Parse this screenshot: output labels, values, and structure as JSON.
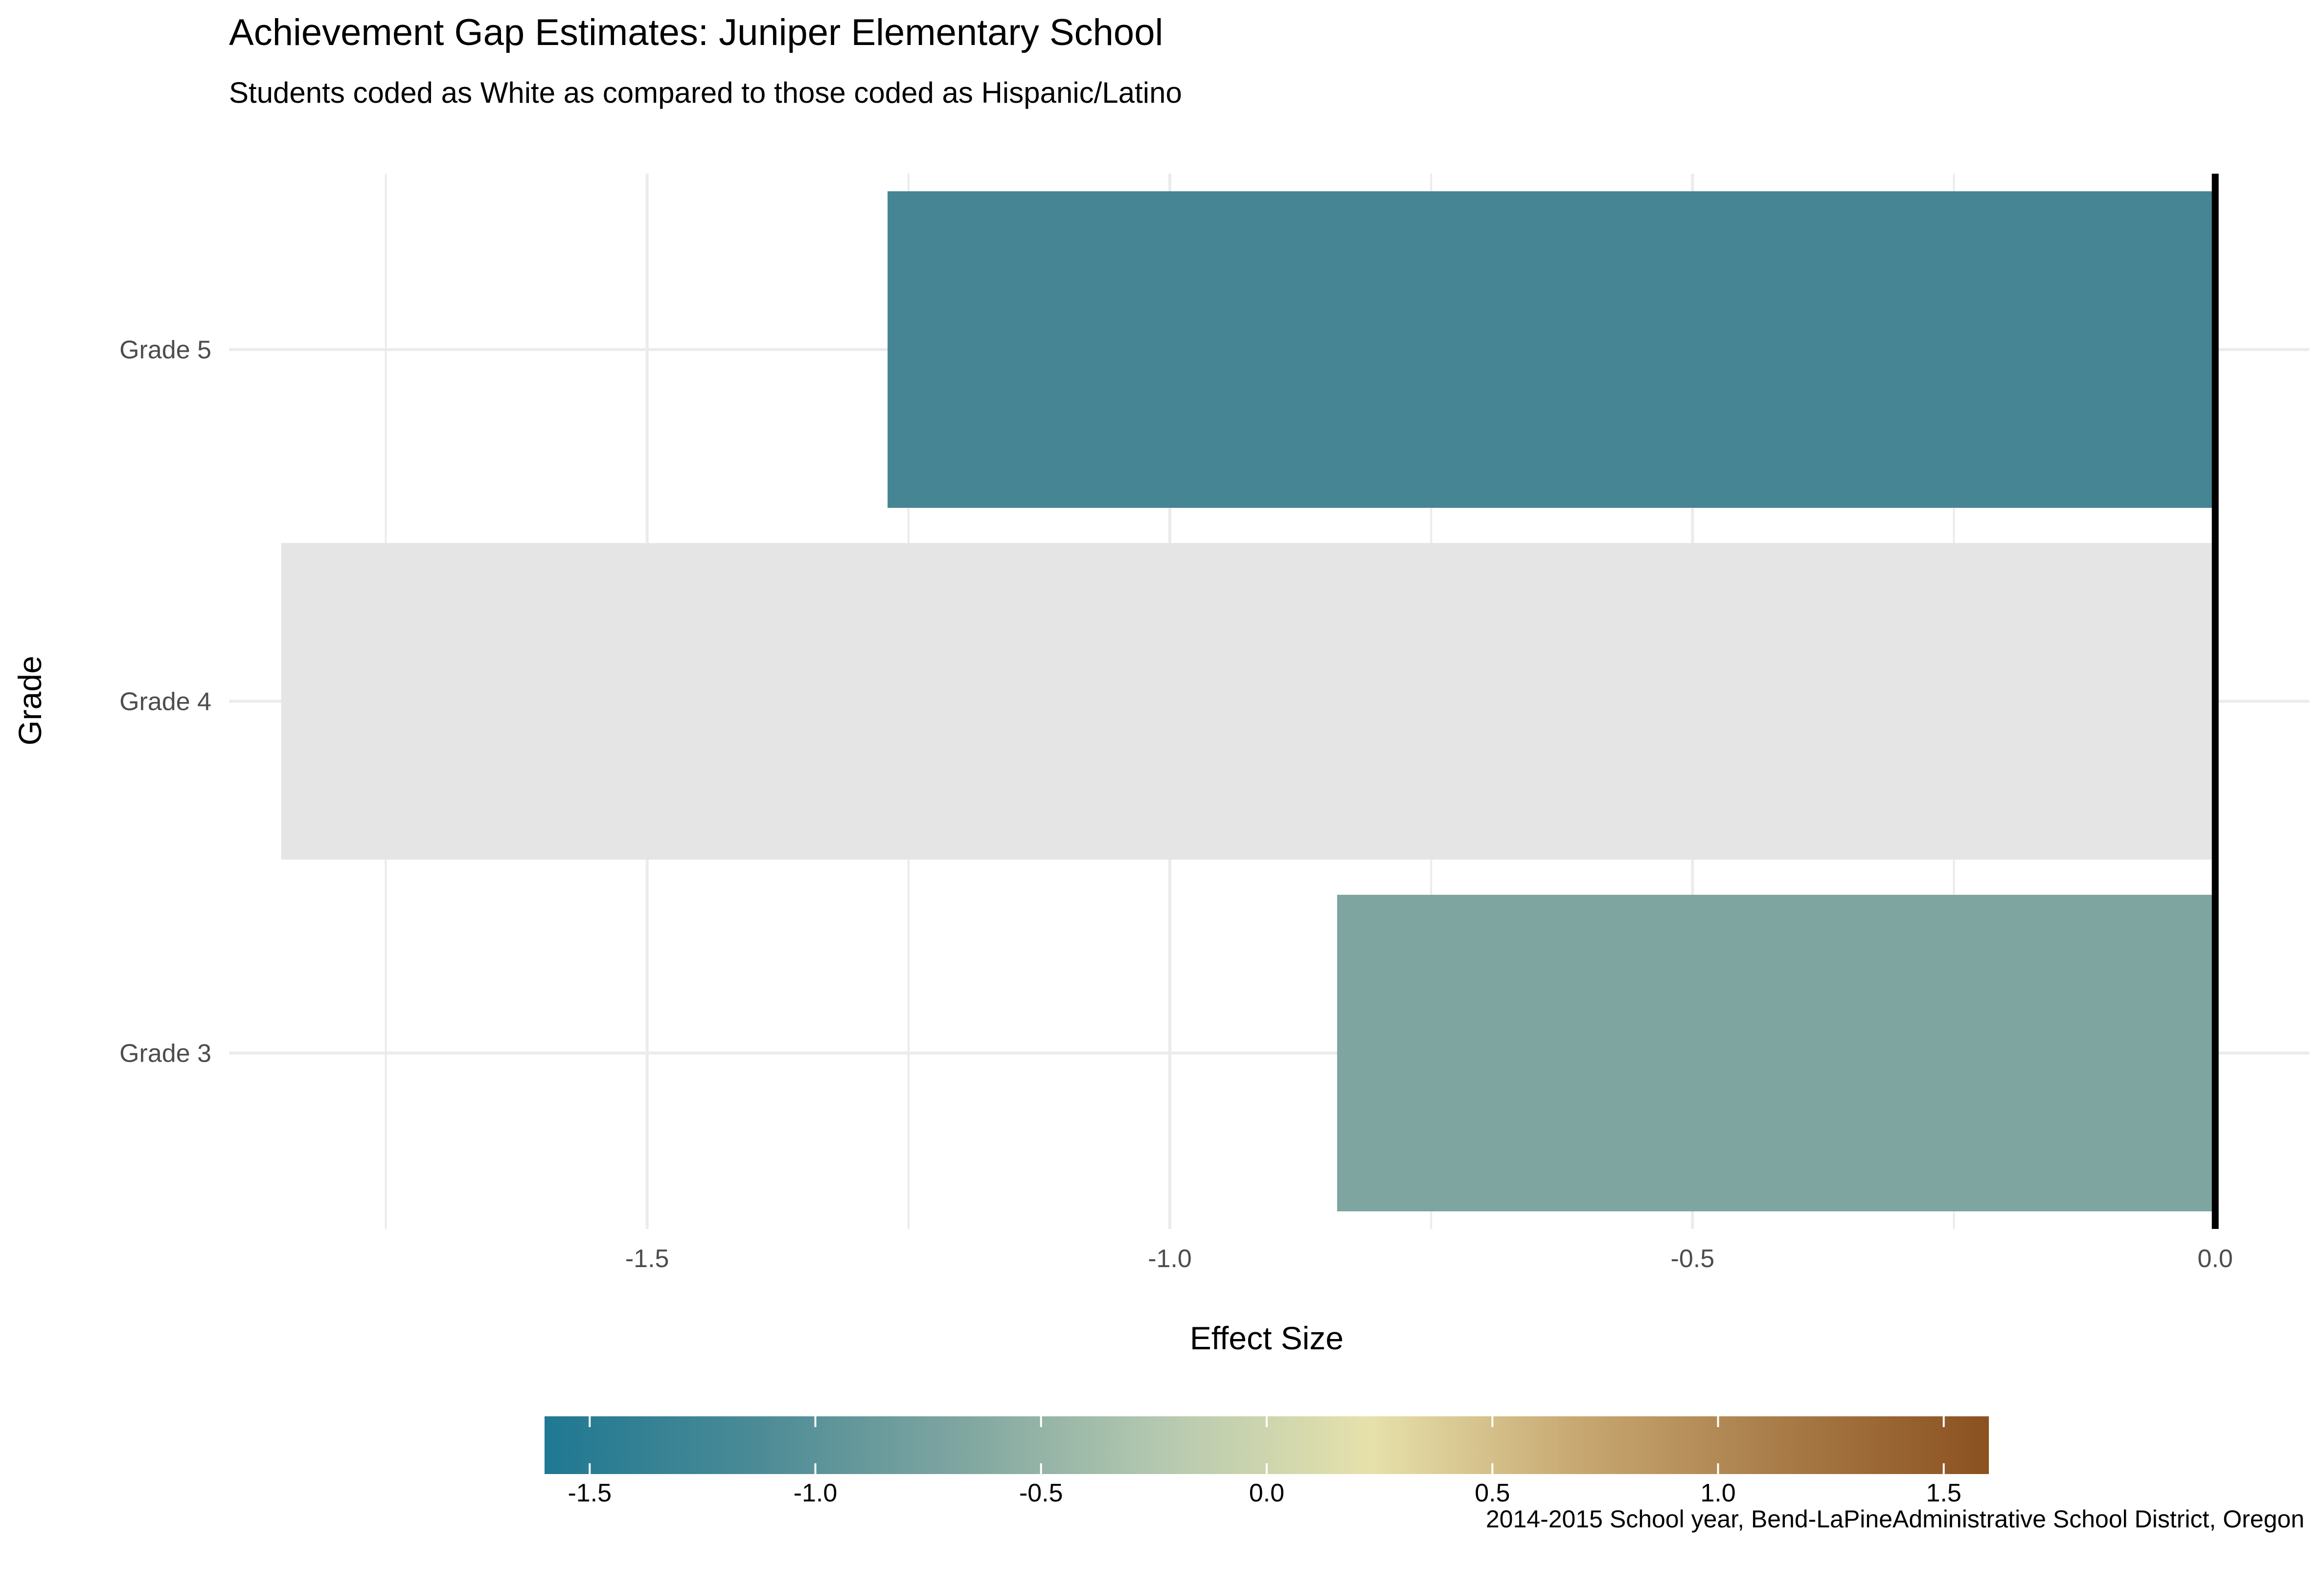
{
  "chart_data": {
    "type": "bar",
    "orientation": "horizontal",
    "title": "Achievement Gap Estimates: Juniper Elementary School",
    "subtitle": "Students coded as White as compared to those coded as Hispanic/Latino",
    "xlabel": "Effect Size",
    "ylabel": "Grade",
    "caption": "2014-2015 School year, Bend-LaPineAdministrative School District, Oregon",
    "categories": [
      "Grade 3",
      "Grade 4",
      "Grade 5"
    ],
    "values": [
      -0.84,
      -1.85,
      -1.27
    ],
    "bar_colors": [
      "#7ea5a0",
      "#e5e5e5",
      "#468594"
    ],
    "xlim": [
      -1.9,
      0.09
    ],
    "x_ticks": [
      -1.5,
      -1.0,
      -0.5,
      0.0
    ],
    "x_tick_labels": [
      "-1.5",
      "-1.0",
      "-0.5",
      "0.0"
    ],
    "reference_line": 0,
    "grid": true,
    "legend": {
      "type": "colorbar",
      "placement": "bottom",
      "range": [
        -1.6,
        1.6
      ],
      "ticks": [
        -1.5,
        -1.0,
        -0.5,
        0.0,
        0.5,
        1.0,
        1.5
      ],
      "tick_labels": [
        "-1.5",
        "-1.0",
        "-0.5",
        "0.0",
        "0.5",
        "1.0",
        "1.5"
      ],
      "colors": [
        "#1f7892",
        "#4a8a96",
        "#7ea5a0",
        "#b5c9b0",
        "#e6e1ab",
        "#c8a872",
        "#a87b47",
        "#8b5120"
      ]
    }
  }
}
